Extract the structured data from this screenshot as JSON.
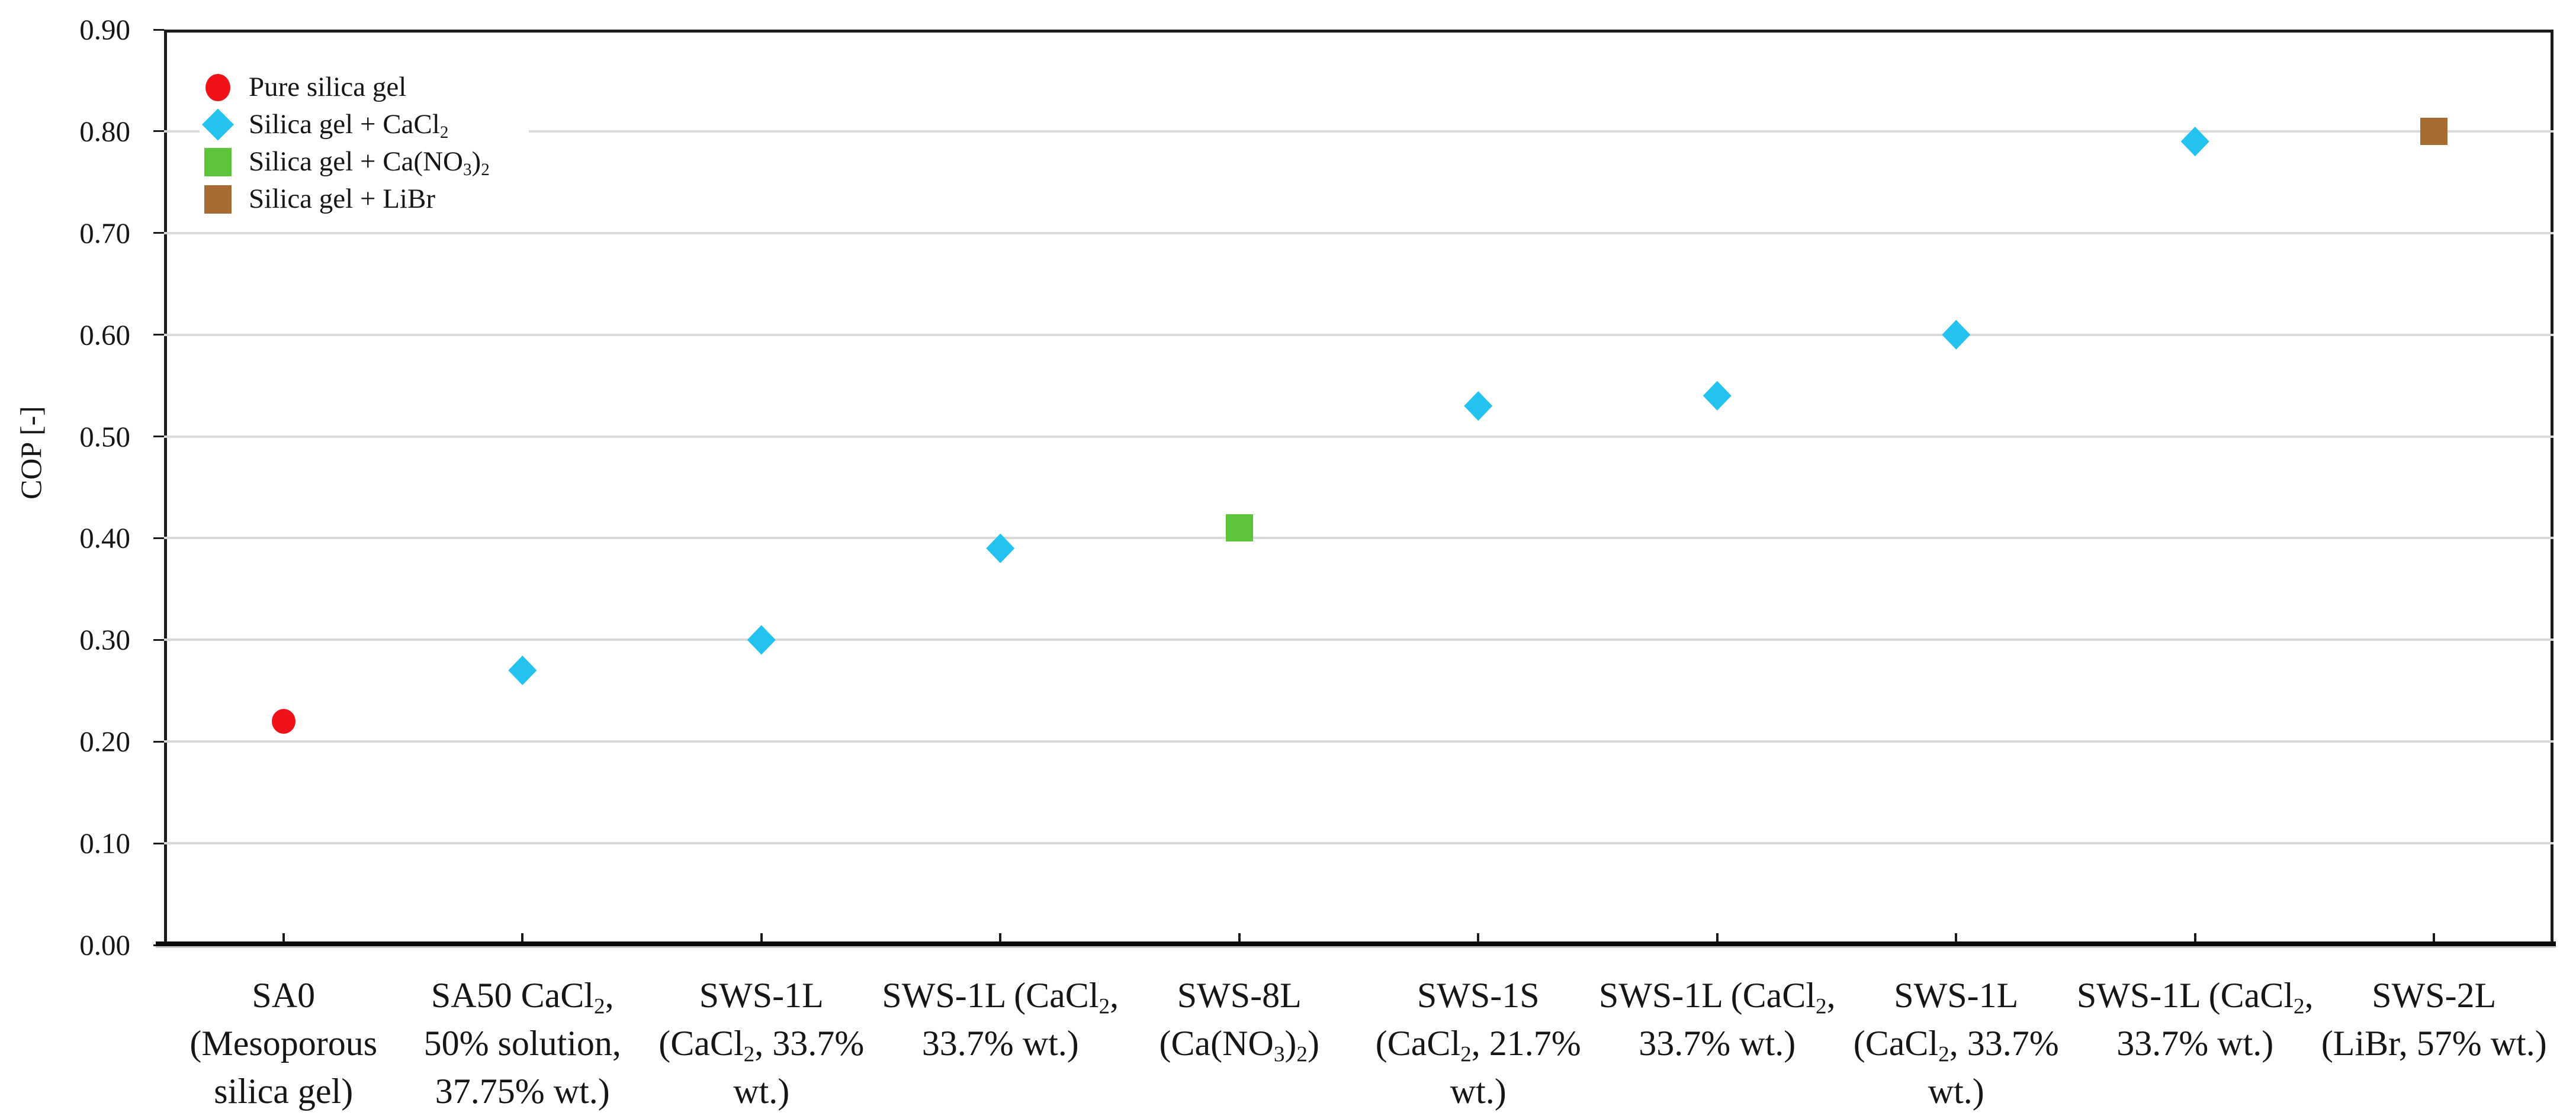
{
  "figure_background": "#FFFFFF",
  "axis_color": "#1B1B1B",
  "grid_color": "#D9D9D9",
  "text_color": "#161616",
  "chart_data": {
    "type": "scatter",
    "title": "",
    "xlabel": "",
    "ylabel": "COP [-]",
    "ylim": [
      0.0,
      0.9
    ],
    "ytick_step": 0.1,
    "ytick_labels": [
      "0.00",
      "0.10",
      "0.20",
      "0.30",
      "0.40",
      "0.50",
      "0.60",
      "0.70",
      "0.80",
      "0.90"
    ],
    "grid": "horizontal",
    "legend_position": "top-left-inside",
    "legend_entries": [
      {
        "label": "Pure silica gel",
        "marker": "circle",
        "color": "#F11118"
      },
      {
        "label": "Silica gel + CaCl~2~",
        "marker": "diamond",
        "color": "#23C2EF"
      },
      {
        "label": "Silica gel + Ca(NO~3~)~2~",
        "marker": "square",
        "color": "#5CC43A"
      },
      {
        "label": "Silica gel + LiBr",
        "marker": "square",
        "color": "#A86B2F"
      }
    ],
    "categories": [
      {
        "lines": [
          "SA0",
          "(Mesoporous",
          "silica gel)"
        ]
      },
      {
        "lines": [
          "SA50 CaCl~2~,",
          "50% solution,",
          "37.75% wt.)"
        ]
      },
      {
        "lines": [
          "SWS-1L",
          "(CaCl~2~, 33.7%",
          "wt.)"
        ]
      },
      {
        "lines": [
          "SWS-1L (CaCl~2~,",
          "33.7% wt.)"
        ]
      },
      {
        "lines": [
          "SWS-8L",
          "(Ca(NO~3~)~2~)"
        ]
      },
      {
        "lines": [
          "SWS-1S",
          "(CaCl~2~, 21.7%",
          "wt.)"
        ]
      },
      {
        "lines": [
          "SWS-1L (CaCl~2~,",
          "33.7% wt.)"
        ]
      },
      {
        "lines": [
          "SWS-1L",
          "(CaCl~2~, 33.7%",
          "wt.)"
        ]
      },
      {
        "lines": [
          "SWS-1L (CaCl~2~,",
          "33.7% wt.)"
        ]
      },
      {
        "lines": [
          "SWS-2L",
          "(LiBr, 57% wt.)"
        ]
      }
    ],
    "points": [
      {
        "category_index": 0,
        "series_index": 0,
        "value": 0.22
      },
      {
        "category_index": 1,
        "series_index": 1,
        "value": 0.27
      },
      {
        "category_index": 2,
        "series_index": 1,
        "value": 0.3
      },
      {
        "category_index": 3,
        "series_index": 1,
        "value": 0.39
      },
      {
        "category_index": 4,
        "series_index": 2,
        "value": 0.41
      },
      {
        "category_index": 5,
        "series_index": 1,
        "value": 0.53
      },
      {
        "category_index": 6,
        "series_index": 1,
        "value": 0.54
      },
      {
        "category_index": 7,
        "series_index": 1,
        "value": 0.6
      },
      {
        "category_index": 8,
        "series_index": 1,
        "value": 0.79
      },
      {
        "category_index": 9,
        "series_index": 3,
        "value": 0.8
      }
    ]
  }
}
